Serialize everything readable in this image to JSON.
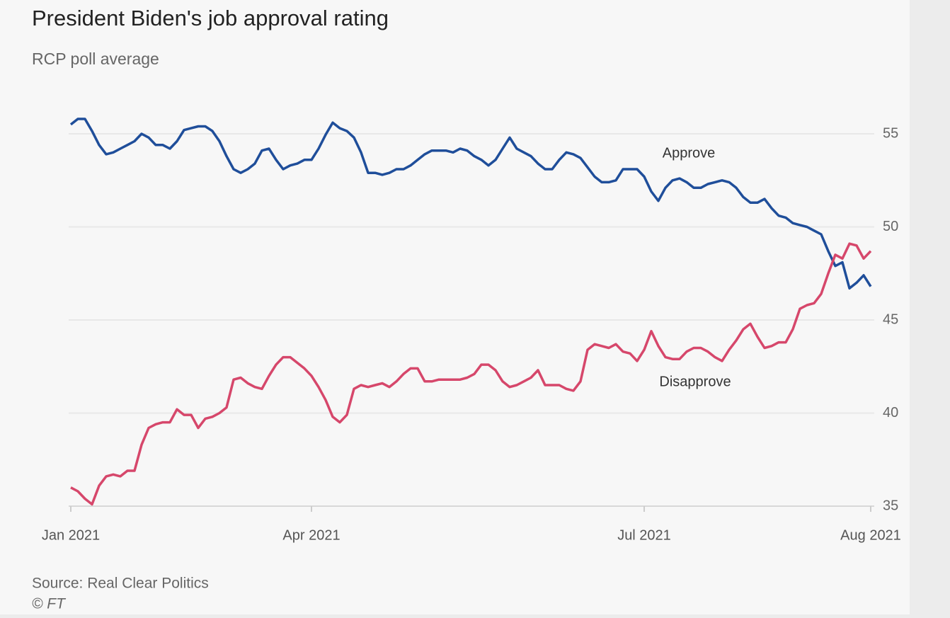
{
  "chart_data": {
    "type": "line",
    "title": "President Biden's job approval rating",
    "subtitle": "RCP poll average",
    "source": "Source: Real Clear Politics",
    "credit": "© FT",
    "categories": [
      "Jan 2021",
      null,
      null,
      null,
      null,
      null,
      null,
      null,
      null,
      null,
      null,
      null,
      null,
      null,
      null,
      null,
      null,
      null,
      null,
      null,
      null,
      null,
      null,
      null,
      null,
      null,
      null,
      null,
      null,
      null,
      null,
      null,
      null,
      null,
      "Apr 2021",
      null,
      null,
      null,
      null,
      null,
      null,
      null,
      null,
      null,
      null,
      null,
      null,
      null,
      null,
      null,
      null,
      null,
      null,
      null,
      null,
      null,
      null,
      null,
      null,
      null,
      null,
      null,
      null,
      null,
      null,
      null,
      null,
      null,
      null,
      null,
      null,
      null,
      null,
      null,
      null,
      null,
      null,
      null,
      null,
      null,
      null,
      "Jul 2021",
      null,
      null,
      null,
      null,
      null,
      null,
      null,
      null,
      null,
      null,
      null,
      null,
      null,
      null,
      null,
      null,
      null,
      null,
      null,
      null,
      null,
      null,
      null,
      null,
      null,
      null,
      null,
      null,
      null,
      null,
      null,
      "Aug 2021"
    ],
    "series": [
      {
        "name": "Approve",
        "color": "#1f4e9a",
        "values": [
          55.5,
          55.8,
          55.8,
          55.15,
          54.4,
          53.9,
          54.0,
          54.2,
          54.4,
          54.6,
          55.0,
          54.8,
          54.4,
          54.4,
          54.2,
          54.6,
          55.2,
          55.3,
          55.4,
          55.4,
          55.15,
          54.6,
          53.8,
          53.1,
          52.9,
          53.1,
          53.4,
          54.1,
          54.2,
          53.6,
          53.1,
          53.3,
          53.4,
          53.6,
          53.6,
          54.2,
          54.95,
          55.6,
          55.3,
          55.15,
          54.8,
          54.0,
          52.9,
          52.9,
          52.8,
          52.9,
          53.1,
          53.1,
          53.3,
          53.6,
          53.9,
          54.1,
          54.1,
          54.1,
          54.0,
          54.2,
          54.1,
          53.8,
          53.6,
          53.3,
          53.6,
          54.2,
          54.8,
          54.2,
          54.0,
          53.8,
          53.4,
          53.1,
          53.1,
          53.6,
          54.0,
          53.9,
          53.7,
          53.2,
          52.7,
          52.4,
          52.4,
          52.5,
          53.1,
          53.1,
          53.1,
          52.7,
          51.9,
          51.4,
          52.1,
          52.5,
          52.6,
          52.4,
          52.1,
          52.1,
          52.3,
          52.4,
          52.5,
          52.4,
          52.1,
          51.6,
          51.3,
          51.3,
          51.5,
          51.0,
          50.6,
          50.5,
          50.2,
          50.1,
          50.0,
          49.8,
          49.6,
          48.7,
          47.9,
          48.1,
          46.7,
          47.0,
          47.4,
          46.8
        ]
      },
      {
        "name": "Disapprove",
        "color": "#d6476b",
        "values": [
          36.0,
          35.8,
          35.4,
          35.1,
          36.1,
          36.6,
          36.7,
          36.6,
          36.9,
          36.9,
          38.3,
          39.2,
          39.4,
          39.5,
          39.5,
          40.2,
          39.9,
          39.9,
          39.2,
          39.7,
          39.8,
          40.0,
          40.3,
          41.8,
          41.9,
          41.6,
          41.4,
          41.3,
          42.0,
          42.6,
          43.0,
          43.0,
          42.7,
          42.4,
          42.0,
          41.4,
          40.7,
          39.8,
          39.5,
          39.9,
          41.3,
          41.5,
          41.4,
          41.5,
          41.6,
          41.4,
          41.7,
          42.1,
          42.4,
          42.4,
          41.7,
          41.7,
          41.8,
          41.8,
          41.8,
          41.8,
          41.9,
          42.1,
          42.6,
          42.6,
          42.3,
          41.7,
          41.4,
          41.5,
          41.7,
          41.9,
          42.3,
          41.5,
          41.5,
          41.5,
          41.3,
          41.2,
          41.7,
          43.4,
          43.7,
          43.6,
          43.5,
          43.7,
          43.3,
          43.2,
          42.8,
          43.4,
          44.4,
          43.6,
          43.0,
          42.9,
          42.9,
          43.3,
          43.5,
          43.5,
          43.3,
          43.0,
          42.8,
          43.4,
          43.9,
          44.5,
          44.8,
          44.1,
          43.5,
          43.6,
          43.8,
          43.8,
          44.5,
          45.6,
          45.8,
          45.9,
          46.4,
          47.5,
          48.5,
          48.3,
          49.1,
          49.0,
          48.3,
          48.7
        ]
      }
    ],
    "ylim": [
      35,
      56
    ],
    "yticks": [
      35,
      40,
      45,
      50,
      55
    ],
    "grid": true
  }
}
